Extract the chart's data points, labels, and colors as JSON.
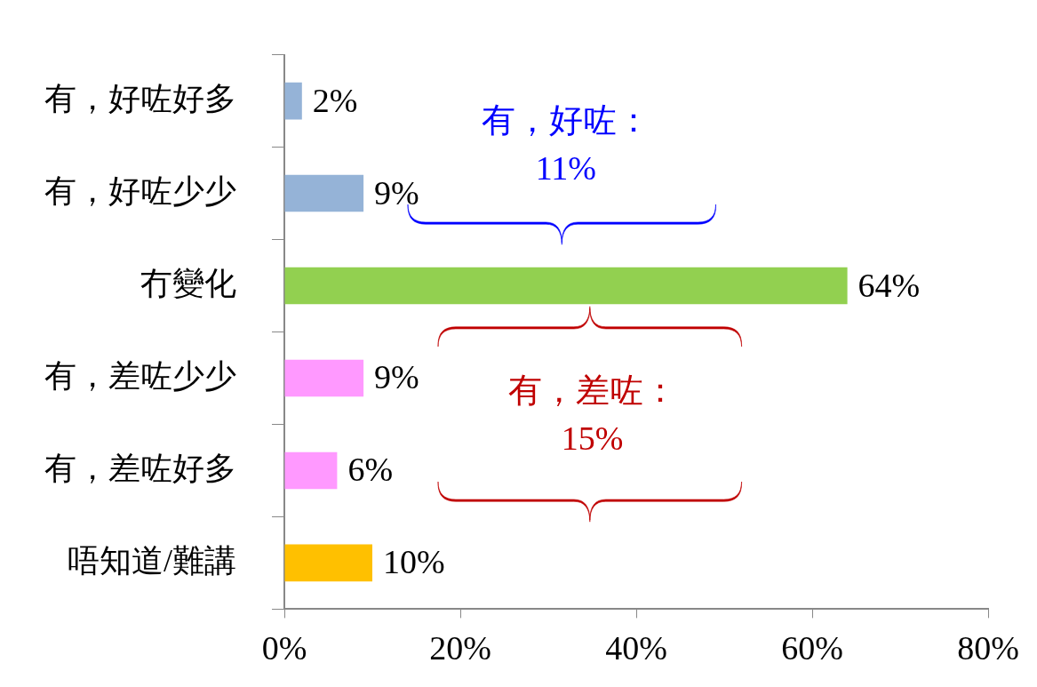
{
  "chart_data": {
    "type": "bar",
    "orientation": "horizontal",
    "categories": [
      "有，好咗好多",
      "有，好咗少少",
      "冇變化",
      "有，差咗少少",
      "有，差咗好多",
      "唔知道/難講"
    ],
    "values": [
      2,
      9,
      64,
      9,
      6,
      10
    ],
    "colors": [
      "#95b3d7",
      "#95b3d7",
      "#92d050",
      "#ff99ff",
      "#ff99ff",
      "#ffc000"
    ],
    "value_labels": [
      "2%",
      "9%",
      "64%",
      "9%",
      "6%",
      "10%"
    ],
    "xlim": [
      0,
      80
    ],
    "xticks": [
      {
        "value": 0,
        "label": "0%"
      },
      {
        "value": 20,
        "label": "20%"
      },
      {
        "value": 40,
        "label": "40%"
      },
      {
        "value": 60,
        "label": "60%"
      },
      {
        "value": 80,
        "label": "80%"
      }
    ],
    "grid": false,
    "legend": false,
    "annotations": [
      "有，好咗：\n11%",
      "有，差咗：\n15%"
    ]
  }
}
